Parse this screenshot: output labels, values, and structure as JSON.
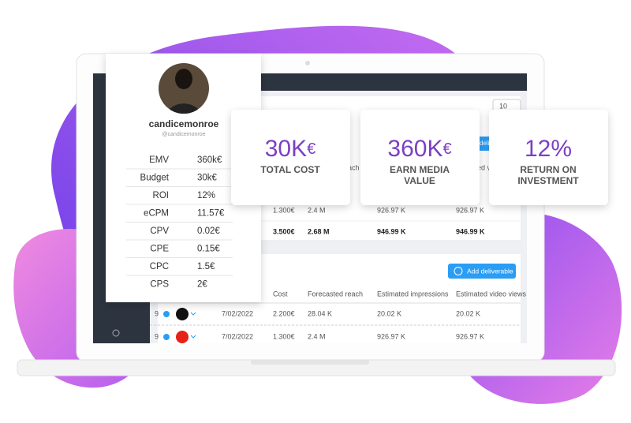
{
  "profile": {
    "username": "candicemonroe",
    "handle": "@candicemonroe",
    "metrics": [
      {
        "label": "EMV",
        "value": "360k€"
      },
      {
        "label": "Budget",
        "value": "30k€"
      },
      {
        "label": "ROI",
        "value": "12%"
      },
      {
        "label": "eCPM",
        "value": "11.57€"
      },
      {
        "label": "CPV",
        "value": "0.02€"
      },
      {
        "label": "CPE",
        "value": "0.15€"
      },
      {
        "label": "CPC",
        "value": "1.5€"
      },
      {
        "label": "CPS",
        "value": "2€"
      }
    ]
  },
  "cards": [
    {
      "amount": "30K",
      "currency": "€",
      "lines": [
        "TOTAL COST"
      ]
    },
    {
      "amount": "360K",
      "currency": "€",
      "lines": [
        "EARN MEDIA",
        "VALUE"
      ]
    },
    {
      "amount": "12%",
      "currency": "",
      "lines": [
        "RETURN ON",
        "INVESTMENT"
      ]
    }
  ],
  "app": {
    "page_size": "10",
    "top_table": {
      "header_fragments": [
        "ach",
        "ed vi"
      ],
      "button_fragment": "deli",
      "rows": [
        [
          "1.300€",
          "2.4 M",
          "926.97 K",
          "926.97 K"
        ],
        [
          "3.500€",
          "2.68 M",
          "946.99 K",
          "946.99 K"
        ]
      ]
    },
    "deliverables": {
      "button": "Add deliverable",
      "headers": [
        "Cost",
        "Forecasted reach",
        "Estimated impressions",
        "Estimated video views"
      ],
      "rows": [
        {
          "count": "9",
          "date": "7/02/2022",
          "cells": [
            "2.200€",
            "28.04 K",
            "20.02 K",
            "20.02 K"
          ]
        },
        {
          "count": "9",
          "date": "7/02/2022",
          "cells": [
            "1.300€",
            "2.4 M",
            "926.97 K",
            "926.97 K"
          ]
        }
      ]
    }
  }
}
